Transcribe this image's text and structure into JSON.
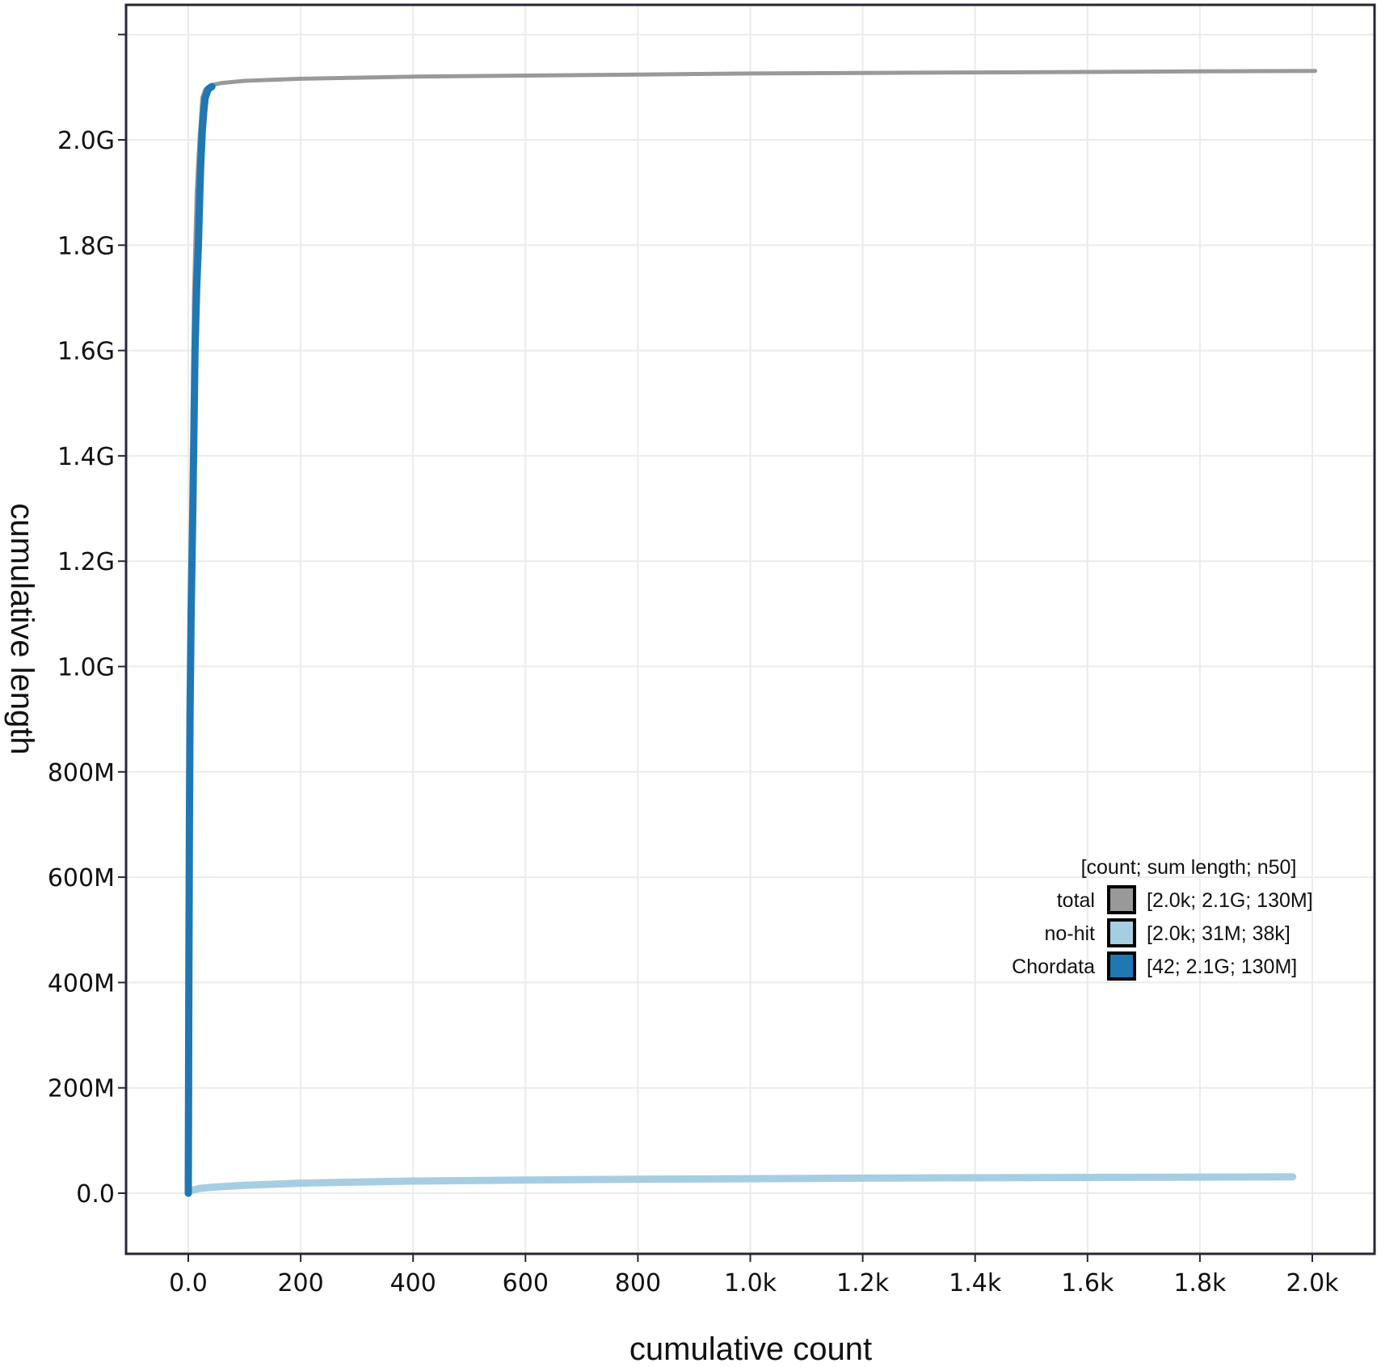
{
  "chart_data": {
    "type": "line",
    "title": "",
    "xlabel": "cumulative count",
    "ylabel": "cumulative length",
    "xlim": [
      -110,
      2110
    ],
    "ylim": [
      -110000000,
      2210000000
    ],
    "grid": true,
    "legend_position": "lower right (inside plot)",
    "x_ticks": [
      0,
      200,
      400,
      600,
      800,
      1000,
      1200,
      1400,
      1600,
      1800,
      2000
    ],
    "x_tick_labels": [
      "0.0",
      "200",
      "400",
      "600",
      "800",
      "1.0k",
      "1.2k",
      "1.4k",
      "1.6k",
      "1.8k",
      "2.0k"
    ],
    "y_ticks": [
      0,
      200000000,
      400000000,
      600000000,
      800000000,
      1000000000,
      1200000000,
      1400000000,
      1600000000,
      1800000000,
      2000000000,
      2200000000
    ],
    "y_tick_labels": [
      "0.0",
      "200M",
      "400M",
      "600M",
      "800M",
      "1.0G",
      "1.2G",
      "1.4G",
      "1.6G",
      "1.8G",
      "2.0G",
      ""
    ],
    "legend": {
      "title": "[count; sum length; n50]",
      "entries": [
        {
          "name": "total",
          "stats": "[2.0k; 2.1G; 130M]",
          "color": "#999999"
        },
        {
          "name": "no-hit",
          "stats": "[2.0k; 31M; 38k]",
          "color": "#a6cee3"
        },
        {
          "name": "Chordata",
          "stats": "[42; 2.1G; 130M]",
          "color": "#1f78b4"
        }
      ]
    },
    "series": [
      {
        "name": "total",
        "color": "#999999",
        "line_width": 5,
        "x": [
          0,
          5,
          10,
          15,
          20,
          25,
          30,
          35,
          40,
          42,
          60,
          100,
          200,
          400,
          600,
          800,
          1000,
          1200,
          1400,
          1600,
          1800,
          2005
        ],
        "y": [
          0,
          900000000,
          1700000000,
          1900000000,
          2000000000,
          2080000000,
          2095000000,
          2100000000,
          2103000000,
          2104000000,
          2108000000,
          2112000000,
          2116000000,
          2120000000,
          2122000000,
          2124000000,
          2126000000,
          2127000000,
          2128000000,
          2129000000,
          2130000000,
          2131000000
        ]
      },
      {
        "name": "no-hit",
        "color": "#a6cee3",
        "line_width": 9,
        "x": [
          0,
          5,
          20,
          50,
          100,
          200,
          300,
          400,
          600,
          800,
          1000,
          1200,
          1400,
          1600,
          1800,
          1965
        ],
        "y": [
          0,
          5000000,
          9000000,
          12000000,
          15000000,
          19000000,
          21000000,
          23000000,
          25000000,
          26500000,
          27500000,
          28500000,
          29300000,
          30000000,
          30600000,
          31000000
        ]
      },
      {
        "name": "Chordata",
        "color": "#1f78b4",
        "line_width": 9,
        "x": [
          0,
          1,
          2,
          3,
          5,
          8,
          10,
          12,
          15,
          18,
          20,
          22,
          25,
          28,
          30,
          35,
          40,
          42
        ],
        "y": [
          0,
          400000000,
          700000000,
          900000000,
          1100000000,
          1300000000,
          1450000000,
          1600000000,
          1720000000,
          1800000000,
          1880000000,
          1950000000,
          2020000000,
          2060000000,
          2080000000,
          2095000000,
          2100000000,
          2101000000
        ]
      }
    ]
  }
}
